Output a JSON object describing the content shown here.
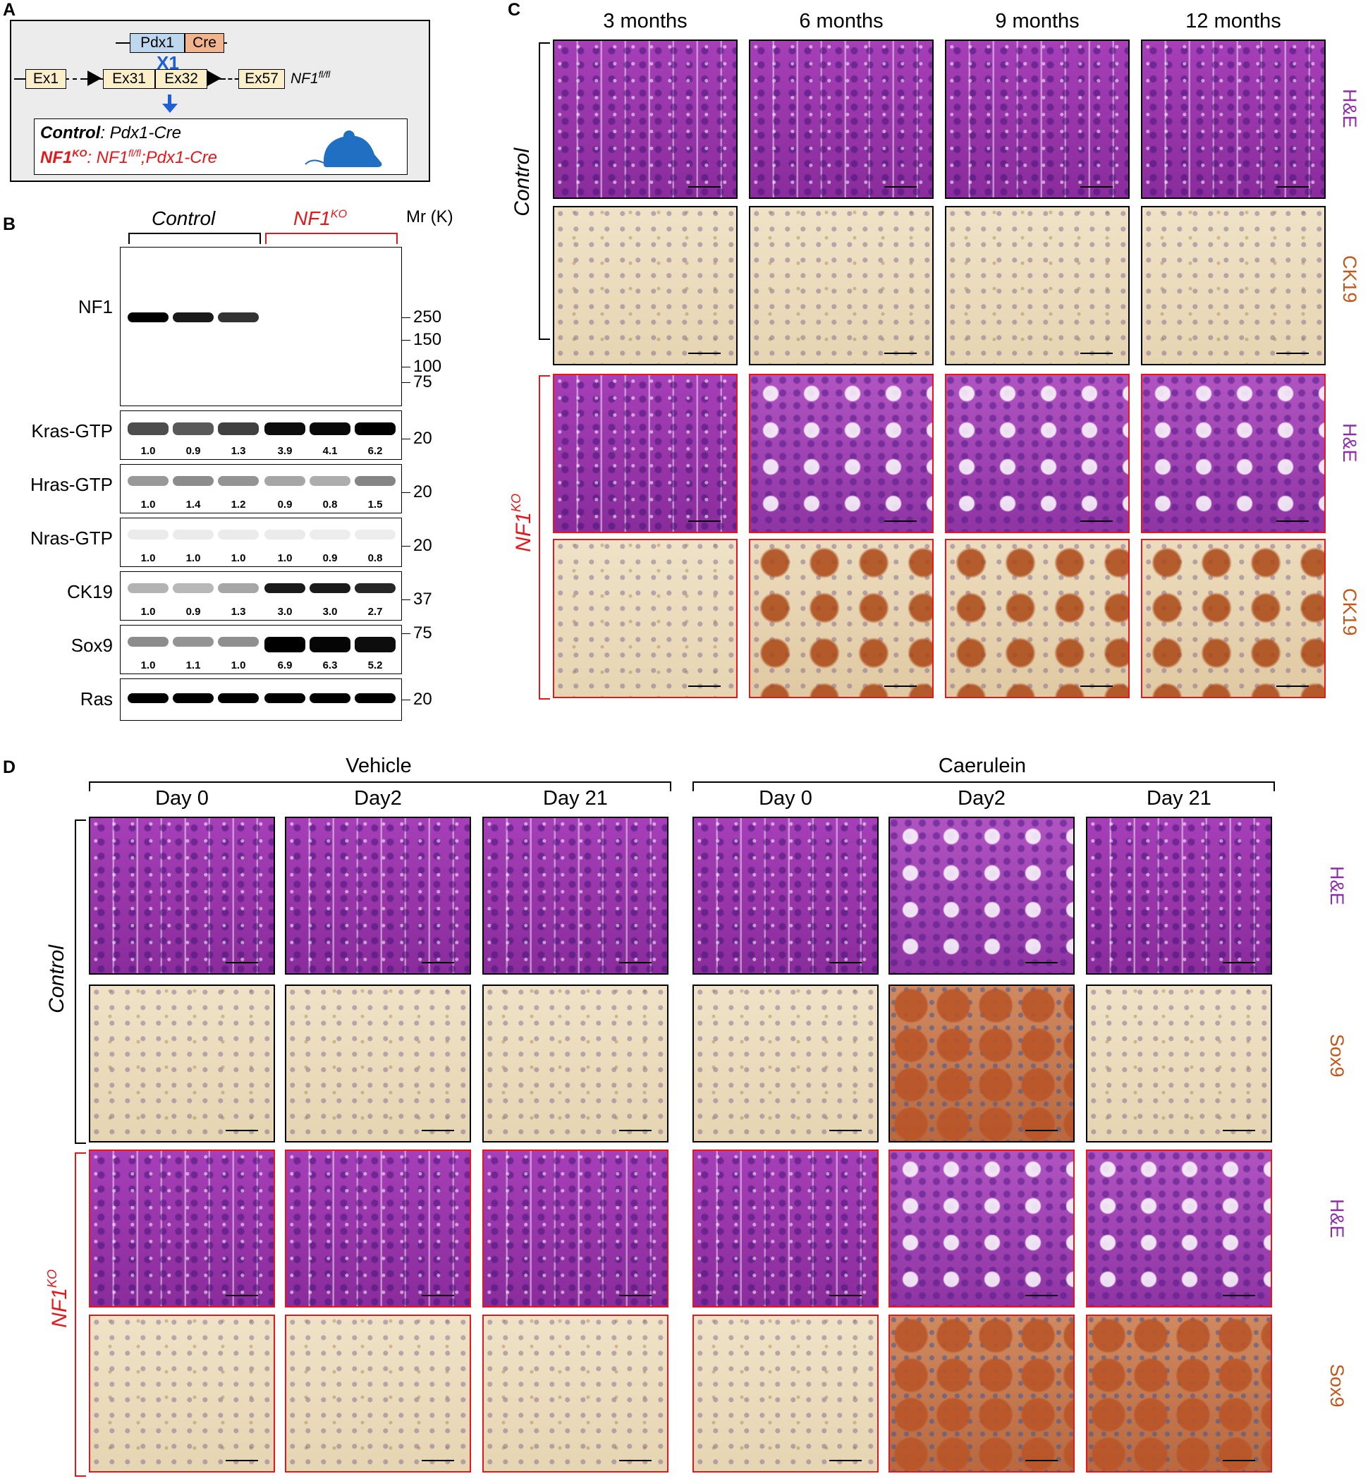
{
  "panel_labels": {
    "a": "A",
    "b": "B",
    "c": "C",
    "d": "D"
  },
  "panelA": {
    "pdx1": "Pdx1",
    "cre": "Cre",
    "cross": "X1",
    "exons": [
      "Ex1",
      "Ex31",
      "Ex32",
      "Ex57"
    ],
    "allele": "NF1",
    "allele_sup": "fl/fl",
    "control_label": "Control",
    "control_genotype": ": Pdx1-Cre",
    "ko_label": "NF1",
    "ko_sup": "KO",
    "ko_genotype_a": ": NF1",
    "ko_genotype_sup": "fl/fl",
    "ko_genotype_b": ";Pdx1-Cre",
    "colors": {
      "pdx1_box": "#bcd7ee",
      "cre_box": "#f2b48d",
      "exon_box": "#fbefc9",
      "arrow": "#1d5fd8",
      "ko_red": "#e5171b",
      "mouse": "#1f6fc2"
    }
  },
  "panelB": {
    "group_control": "Control",
    "group_ko": "NF1",
    "group_ko_sup": "KO",
    "mr_header": "Mr (K)",
    "blots": [
      {
        "name": "NF1",
        "markers": [
          "250",
          "150",
          "100",
          "75"
        ],
        "quant": []
      },
      {
        "name": "Kras-GTP",
        "markers": [
          "20"
        ],
        "quant": [
          "1.0",
          "0.9",
          "1.3",
          "3.9",
          "4.1",
          "6.2"
        ]
      },
      {
        "name": "Hras-GTP",
        "markers": [
          "20"
        ],
        "quant": [
          "1.0",
          "1.4",
          "1.2",
          "0.9",
          "0.8",
          "1.5"
        ]
      },
      {
        "name": "Nras-GTP",
        "markers": [
          "20"
        ],
        "quant": [
          "1.0",
          "1.0",
          "1.0",
          "1.0",
          "0.9",
          "0.8"
        ]
      },
      {
        "name": "CK19",
        "markers": [
          "37"
        ],
        "quant": [
          "1.0",
          "0.9",
          "1.3",
          "3.0",
          "3.0",
          "2.7"
        ]
      },
      {
        "name": "Sox9",
        "markers": [
          "75"
        ],
        "quant": [
          "1.0",
          "1.1",
          "1.0",
          "6.9",
          "6.3",
          "5.2"
        ]
      },
      {
        "name": "Ras",
        "markers": [
          "20"
        ],
        "quant": []
      }
    ]
  },
  "panelC": {
    "columns": [
      "3 months",
      "6 months",
      "9 months",
      "12 months"
    ],
    "row_labels": [
      "H&E",
      "CK19",
      "H&E",
      "CK19"
    ],
    "group_control": "Control",
    "group_ko": "NF1",
    "group_ko_sup": "KO"
  },
  "panelD": {
    "treatments": [
      "Vehicle",
      "Caerulein"
    ],
    "days": [
      "Day 0",
      "Day2",
      "Day 21",
      "Day 0",
      "Day2",
      "Day 21"
    ],
    "row_labels": [
      "H&E",
      "Sox9",
      "H&E",
      "Sox9"
    ],
    "group_control": "Control",
    "group_ko": "NF1",
    "group_ko_sup": "KO"
  }
}
